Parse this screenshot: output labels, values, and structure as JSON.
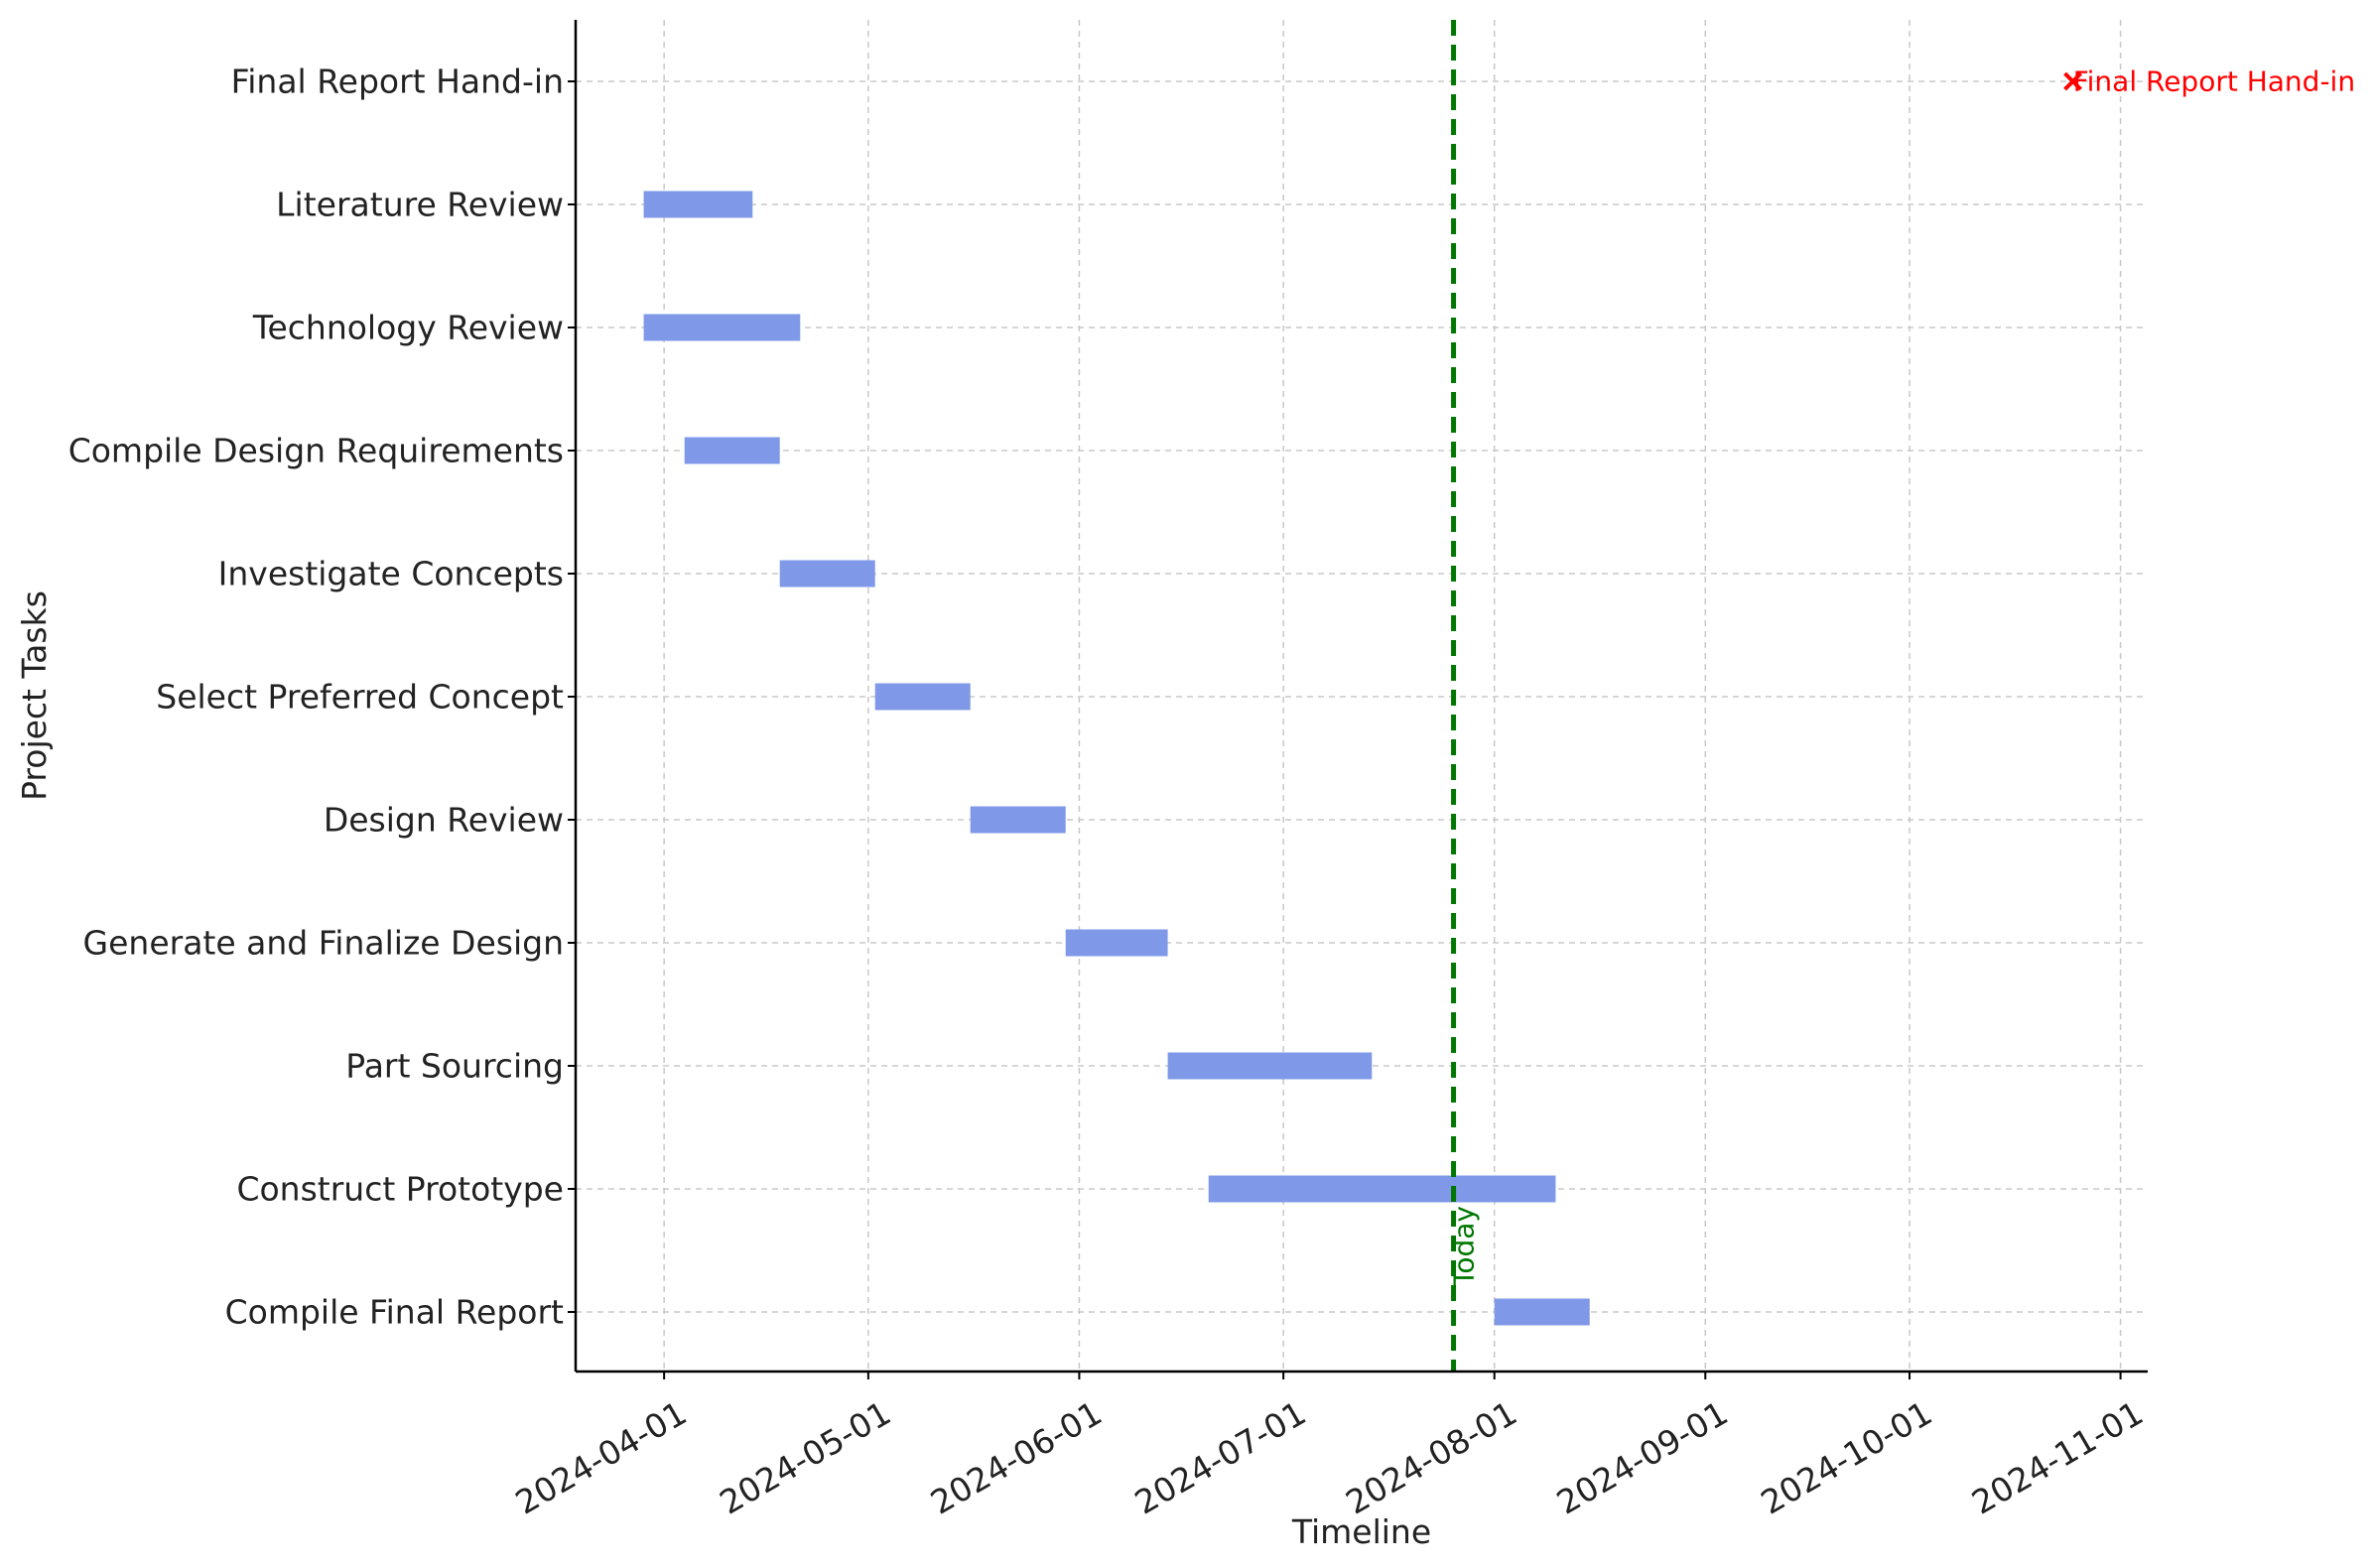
{
  "chart_data": {
    "type": "gantt",
    "xlabel": "Timeline",
    "ylabel": "Project Tasks",
    "x_axis_type": "date",
    "xlim": [
      "2024-03-19",
      "2024-11-05"
    ],
    "x_ticks": [
      "2024-04-01",
      "2024-05-01",
      "2024-06-01",
      "2024-07-01",
      "2024-08-01",
      "2024-09-01",
      "2024-10-01",
      "2024-11-01"
    ],
    "grid": true,
    "bar_color": "#7f99e8",
    "tasks": [
      {
        "name": "Final Report Hand-in",
        "start": null,
        "end": null
      },
      {
        "name": "Literature Review",
        "start": "2024-03-29",
        "end": "2024-04-14"
      },
      {
        "name": "Technology Review",
        "start": "2024-03-29",
        "end": "2024-04-21"
      },
      {
        "name": "Compile Design Requirements",
        "start": "2024-04-04",
        "end": "2024-04-18"
      },
      {
        "name": "Investigate Concepts",
        "start": "2024-04-18",
        "end": "2024-05-02"
      },
      {
        "name": "Select Preferred Concept",
        "start": "2024-05-02",
        "end": "2024-05-16"
      },
      {
        "name": "Design Review",
        "start": "2024-05-16",
        "end": "2024-05-30"
      },
      {
        "name": "Generate and Finalize Design",
        "start": "2024-05-30",
        "end": "2024-06-14"
      },
      {
        "name": "Part Sourcing",
        "start": "2024-06-14",
        "end": "2024-07-14"
      },
      {
        "name": "Construct Prototype",
        "start": "2024-06-20",
        "end": "2024-08-10"
      },
      {
        "name": "Compile Final Report",
        "start": "2024-08-01",
        "end": "2024-08-15"
      }
    ],
    "milestone": {
      "label": "Final Report Hand-in",
      "date": "2024-10-25",
      "task": "Final Report Hand-in",
      "marker": "x",
      "color": "#ff0000"
    },
    "today": {
      "label": "Today",
      "date": "2024-07-26",
      "color": "#007700"
    }
  }
}
